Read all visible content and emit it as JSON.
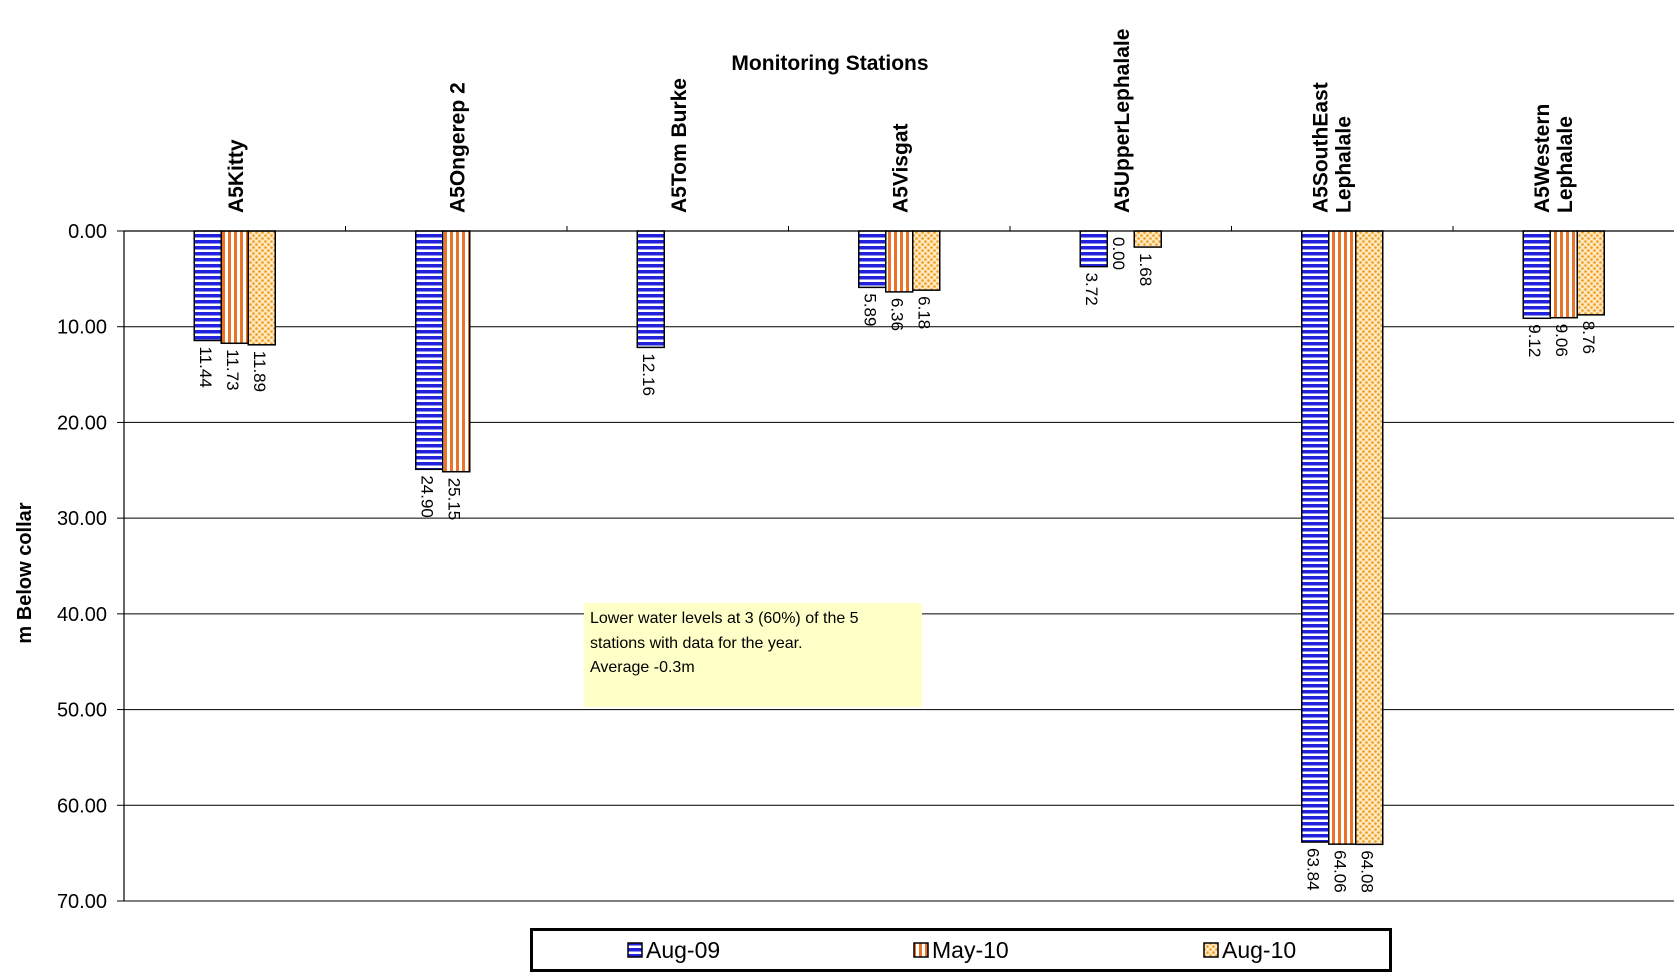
{
  "chart_data": {
    "type": "bar",
    "title": "Monitoring Stations",
    "xlabel": "",
    "ylabel": "m Below collar",
    "inverted_y": true,
    "ylim": [
      0,
      70
    ],
    "yticks": [
      "0.00",
      "10.00",
      "20.00",
      "30.00",
      "40.00",
      "50.00",
      "60.00",
      "70.00"
    ],
    "grid": true,
    "legend_position": "bottom",
    "categories": [
      [
        "A5Kitty"
      ],
      [
        "A5Ongerep 2"
      ],
      [
        "A5Tom Burke"
      ],
      [
        "A5Visgat"
      ],
      [
        "A5UpperLephalale"
      ],
      [
        "A5SouthEast",
        "Lephalale"
      ],
      [
        "A5Western",
        "Lephalale"
      ]
    ],
    "series": [
      {
        "name": "Aug-09",
        "pattern": "horizontal-stripes",
        "color": "#2222dd",
        "values": [
          11.44,
          24.9,
          12.16,
          5.89,
          3.72,
          63.84,
          9.12
        ],
        "labels": [
          "11.44",
          "24.90",
          "12.16",
          "5.89",
          "3.72",
          "63.84",
          "9.12"
        ]
      },
      {
        "name": "May-10",
        "pattern": "vertical-stripes",
        "color": "#e8742a",
        "values": [
          11.73,
          25.15,
          null,
          6.36,
          0.0,
          64.06,
          9.06
        ],
        "labels": [
          "11.73",
          "25.15",
          null,
          "6.36",
          "0.00",
          "64.06",
          "9.06"
        ]
      },
      {
        "name": "Aug-10",
        "pattern": "dots",
        "color": "#f0a030",
        "values": [
          11.89,
          null,
          null,
          6.18,
          1.68,
          64.08,
          8.76
        ],
        "labels": [
          "11.89",
          null,
          null,
          "6.18",
          "1.68",
          "64.08",
          "8.76"
        ]
      }
    ],
    "annotation": [
      "Lower water levels at 3  (60%) of the 5",
      "stations with data for the year.",
      "Average -0.3m"
    ]
  }
}
